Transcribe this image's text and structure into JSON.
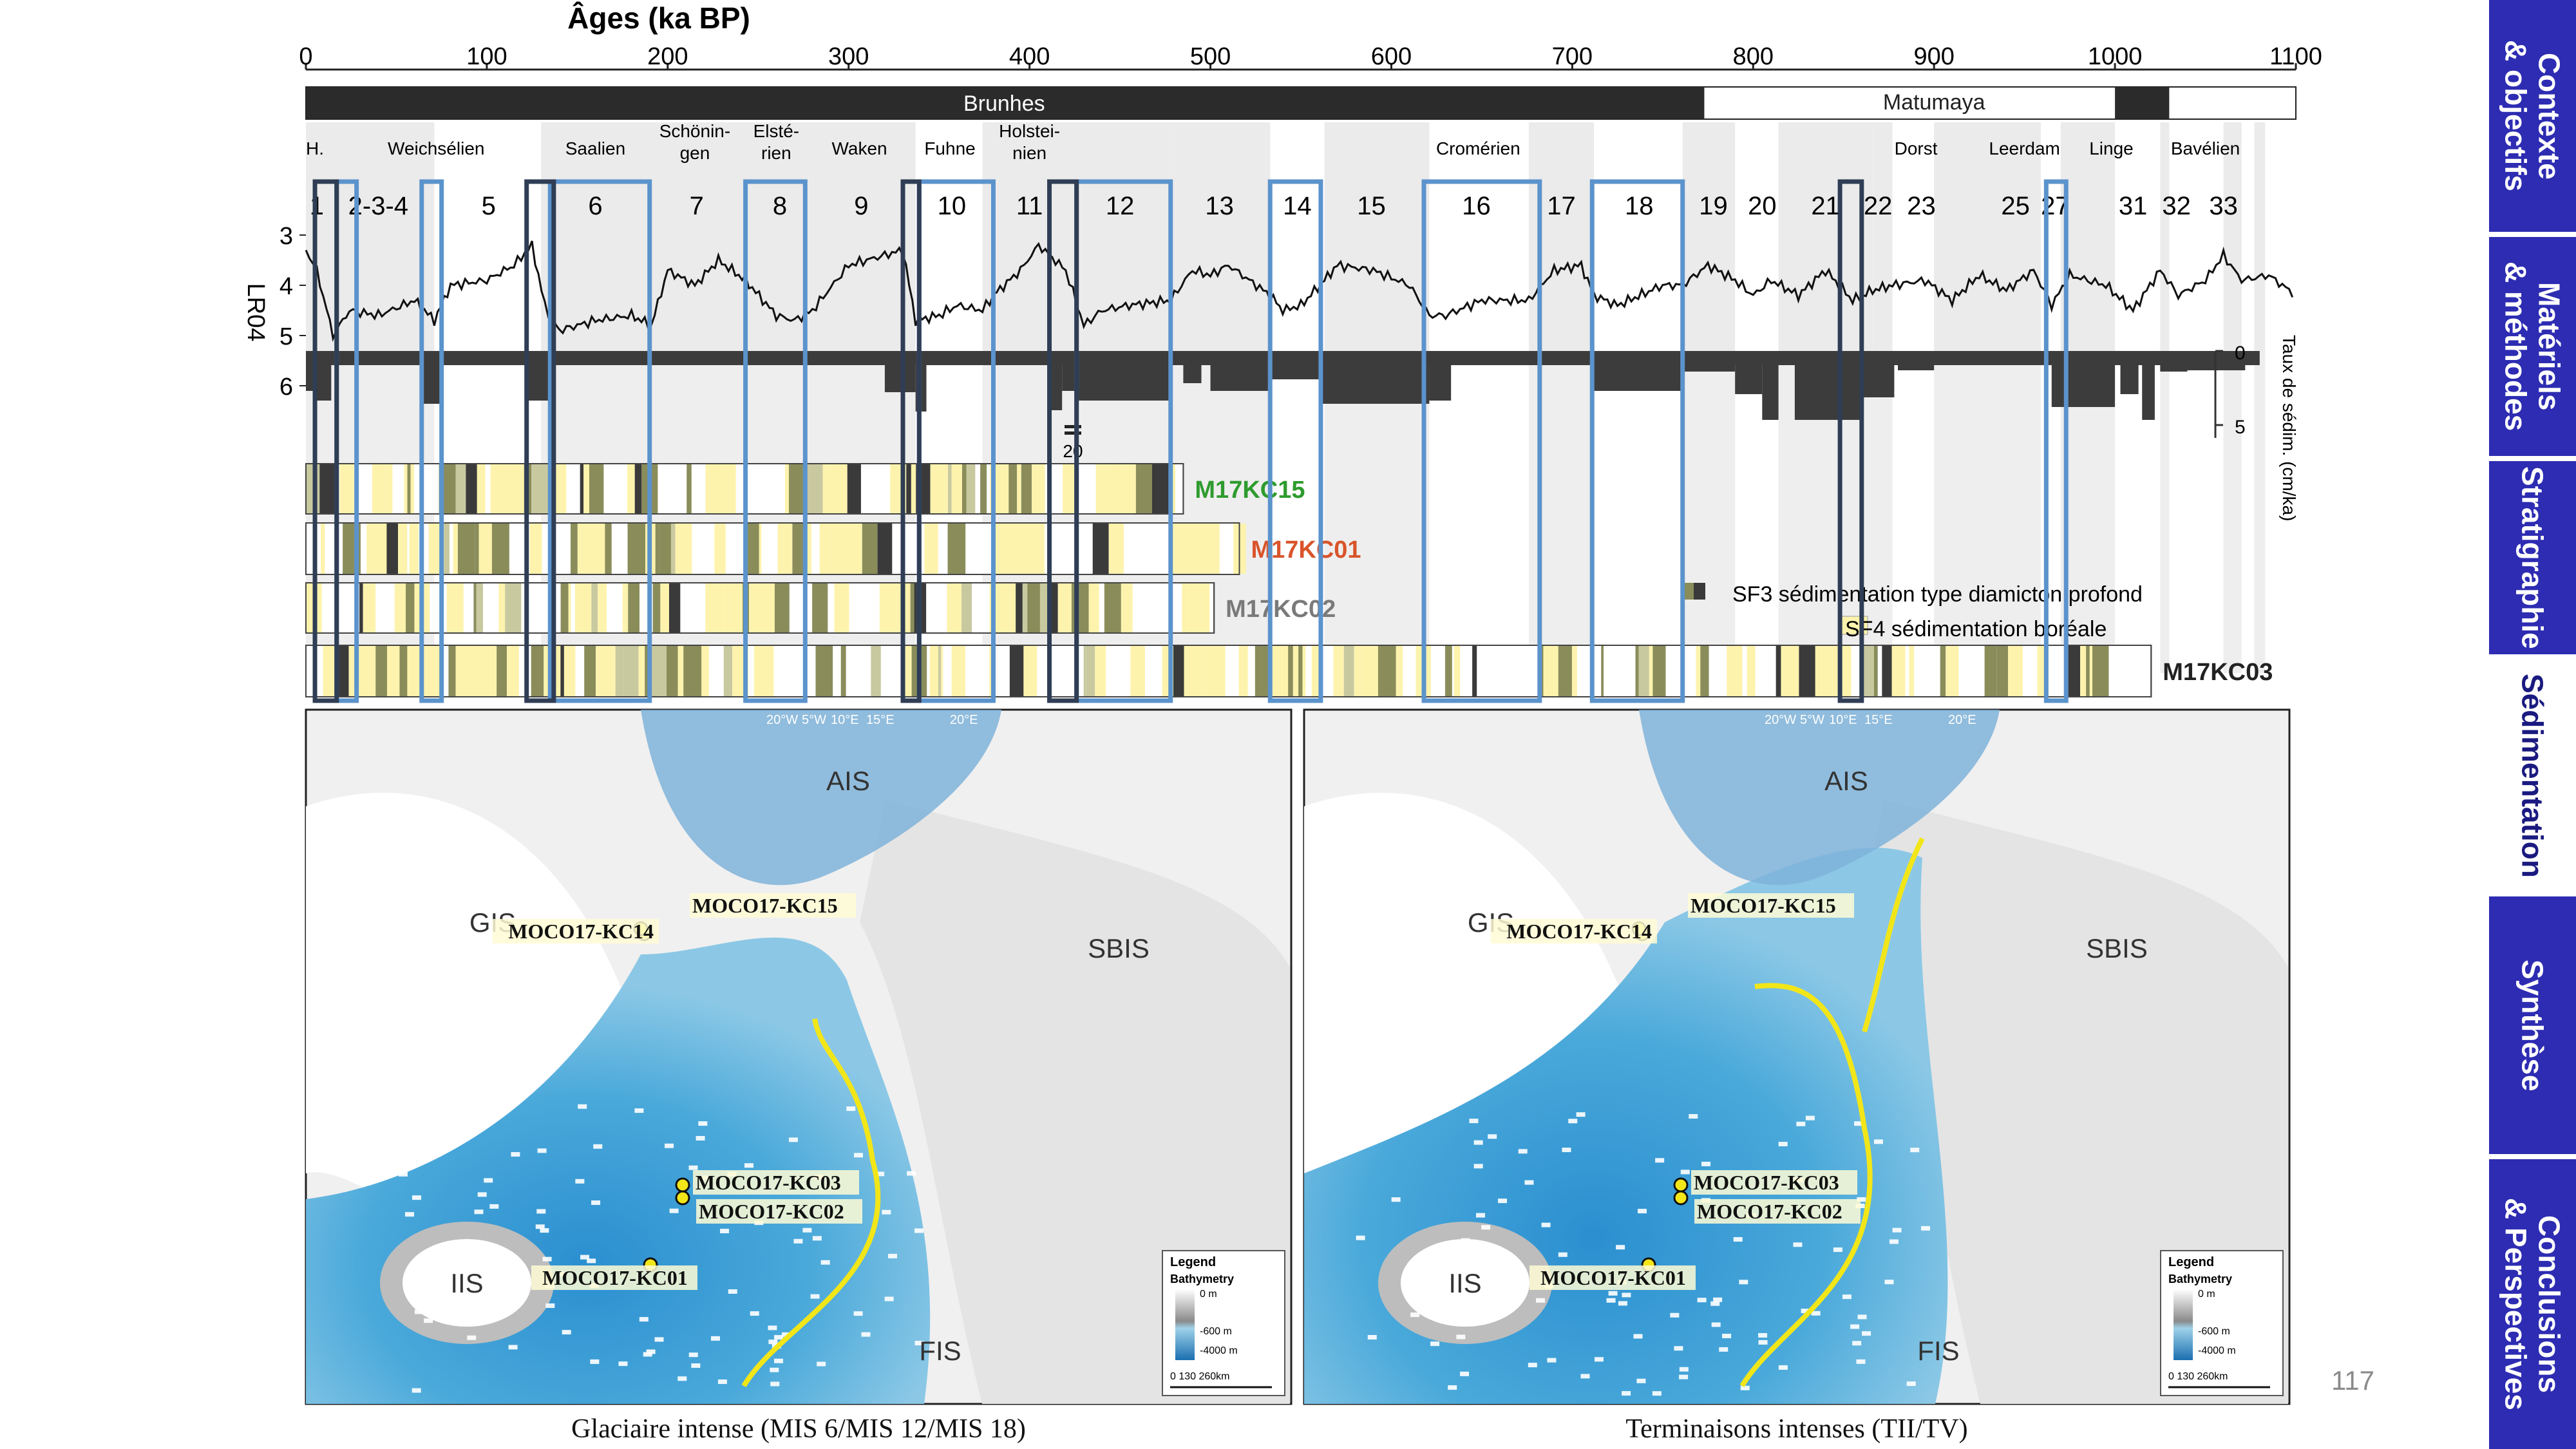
{
  "axis": {
    "title": "Âges (ka BP)",
    "ticks": [
      0,
      100,
      200,
      300,
      400,
      500,
      600,
      700,
      800,
      900,
      1000,
      1100
    ]
  },
  "chrons": [
    {
      "name": "Brunhes",
      "start": 0,
      "end": 773,
      "color": "#2b2b2b",
      "text_color": "#ffffff"
    },
    {
      "name": "",
      "start": 773,
      "end": 1000,
      "color": "#ffffff",
      "text_color": "#222222"
    },
    {
      "name": "Matumaya",
      "start": 900,
      "end": 900,
      "color": "none",
      "text_color": "#222222"
    },
    {
      "name": "",
      "start": 1000,
      "end": 1030,
      "color": "#2b2b2b",
      "text_color": "#ffffff"
    },
    {
      "name": "",
      "start": 1030,
      "end": 1100,
      "color": "#ffffff",
      "text_color": "#222222"
    }
  ],
  "stages_names": [
    {
      "label": "H.",
      "x": 5
    },
    {
      "label": "Weichsélien",
      "x": 72
    },
    {
      "label": "Saalien",
      "x": 160
    },
    {
      "label": "Schönin-\ngen",
      "x": 215
    },
    {
      "label": "Elsté-\nrien",
      "x": 260
    },
    {
      "label": "Waken",
      "x": 306
    },
    {
      "label": "Fuhne",
      "x": 356
    },
    {
      "label": "Holstei-\nnien",
      "x": 400
    },
    {
      "label": "Cromérien",
      "x": 648
    },
    {
      "label": "Dorst",
      "x": 890
    },
    {
      "label": "Leerdam",
      "x": 950
    },
    {
      "label": "Linge",
      "x": 998
    },
    {
      "label": "Bavélien",
      "x": 1050
    }
  ],
  "mis_labels": [
    {
      "label": "1",
      "x": 6
    },
    {
      "label": "2-3-4",
      "x": 40
    },
    {
      "label": "5",
      "x": 101
    },
    {
      "label": "6",
      "x": 160
    },
    {
      "label": "7",
      "x": 216
    },
    {
      "label": "8",
      "x": 262
    },
    {
      "label": "9",
      "x": 307
    },
    {
      "label": "10",
      "x": 357
    },
    {
      "label": "11",
      "x": 400
    },
    {
      "label": "12",
      "x": 450
    },
    {
      "label": "13",
      "x": 505
    },
    {
      "label": "14",
      "x": 548
    },
    {
      "label": "15",
      "x": 589
    },
    {
      "label": "16",
      "x": 647
    },
    {
      "label": "17",
      "x": 694
    },
    {
      "label": "18",
      "x": 737
    },
    {
      "label": "19",
      "x": 778
    },
    {
      "label": "20",
      "x": 805
    },
    {
      "label": "21",
      "x": 840
    },
    {
      "label": "22",
      "x": 869
    },
    {
      "label": "23",
      "x": 893
    },
    {
      "label": "25",
      "x": 945
    },
    {
      "label": "27",
      "x": 967
    },
    {
      "label": "31",
      "x": 1010
    },
    {
      "label": "32",
      "x": 1034
    },
    {
      "label": "33",
      "x": 1060
    }
  ],
  "lr04": {
    "label": "LR04",
    "yticks": [
      3,
      4,
      5,
      6
    ],
    "sedim_label": "Taux de sédim.\n(cm/ka)",
    "sedim_ticks": [
      0,
      5
    ],
    "break_label": "20"
  },
  "glacial_boxes": [
    [
      5,
      17
    ],
    [
      122,
      137
    ],
    [
      330,
      339
    ],
    [
      411,
      426
    ],
    [
      848,
      860
    ]
  ],
  "interglacial_boxes": [
    [
      17,
      28
    ],
    [
      64,
      75
    ],
    [
      135,
      190
    ],
    [
      243,
      276
    ],
    [
      339,
      380
    ],
    [
      426,
      478
    ],
    [
      533,
      561
    ],
    [
      618,
      682
    ],
    [
      711,
      761
    ],
    [
      962,
      973
    ]
  ],
  "cores": [
    {
      "name": "M17KC15",
      "end": 485,
      "color": "#2e9b2e"
    },
    {
      "name": "M17KC01",
      "end": 516,
      "color": "#d9542b"
    },
    {
      "name": "M17KC02",
      "end": 502,
      "color": "#7a7a7a"
    },
    {
      "name": "M17KC03",
      "end": 1020,
      "color": "#222222"
    }
  ],
  "legend": {
    "sf3": "SF3 sédimentation type diamicton profond",
    "sf4": "SF4 sédimentation boréale"
  },
  "maps": [
    {
      "caption": "Glaciaire intense (MIS 6/MIS 12/MIS 18)",
      "regions": {
        "ais": "AIS",
        "gis": "GIS",
        "sbis": "SBIS",
        "iis": "IIS",
        "fis": "FIS"
      },
      "sites": {
        "kc15": "MOCO17-KC15",
        "kc14": "MOCO17-KC14",
        "kc03": "MOCO17-KC03",
        "kc02": "MOCO17-KC02",
        "kc01": "MOCO17-KC01"
      },
      "legend": {
        "title": "Legend",
        "sub": "Bathymetry",
        "v0": "0 m",
        "v600": "-600 m",
        "v4000": "-4000 m",
        "scale": "0   130   260km"
      },
      "graticule": [
        "20°W",
        "5°W",
        "10°E",
        "15°E",
        "20°E"
      ]
    },
    {
      "caption": "Terminaisons intenses (TII/TV)",
      "regions": {
        "ais": "AIS",
        "gis": "GIS",
        "sbis": "SBIS",
        "iis": "IIS",
        "fis": "FIS"
      },
      "sites": {
        "kc15": "MOCO17-KC15",
        "kc14": "MOCO17-KC14",
        "kc03": "MOCO17-KC03",
        "kc02": "MOCO17-KC02",
        "kc01": "MOCO17-KC01"
      },
      "legend": {
        "title": "Legend",
        "sub": "Bathymetry",
        "v0": "0 m",
        "v600": "-600 m",
        "v4000": "-4000 m",
        "scale": "0   130   260km"
      },
      "graticule": [
        "20°W",
        "5°W",
        "10°E",
        "15°E",
        "20°E"
      ]
    }
  ],
  "page_number": "117",
  "sidebar": [
    {
      "label": "Contexte\n& objectifs",
      "active": false
    },
    {
      "label": "Matériels\n& méthodes",
      "active": false
    },
    {
      "label": "Stratigraphie",
      "active": false
    },
    {
      "label": "Sédimentation",
      "active": true
    },
    {
      "label": "Synthèse",
      "active": false
    },
    {
      "label": "Conclusions\n& Perspectives",
      "active": false
    }
  ],
  "colors": {
    "sidebar_bg": "#2d2cb2",
    "interglacial_box": "#5b93cc",
    "glacial_box": "#2f3d55",
    "sf4": "#fdf3ad",
    "sf3_dark": "#3a3a3a",
    "sf3_olive": "#8a8d5a",
    "arrow": "#f2e619"
  }
}
